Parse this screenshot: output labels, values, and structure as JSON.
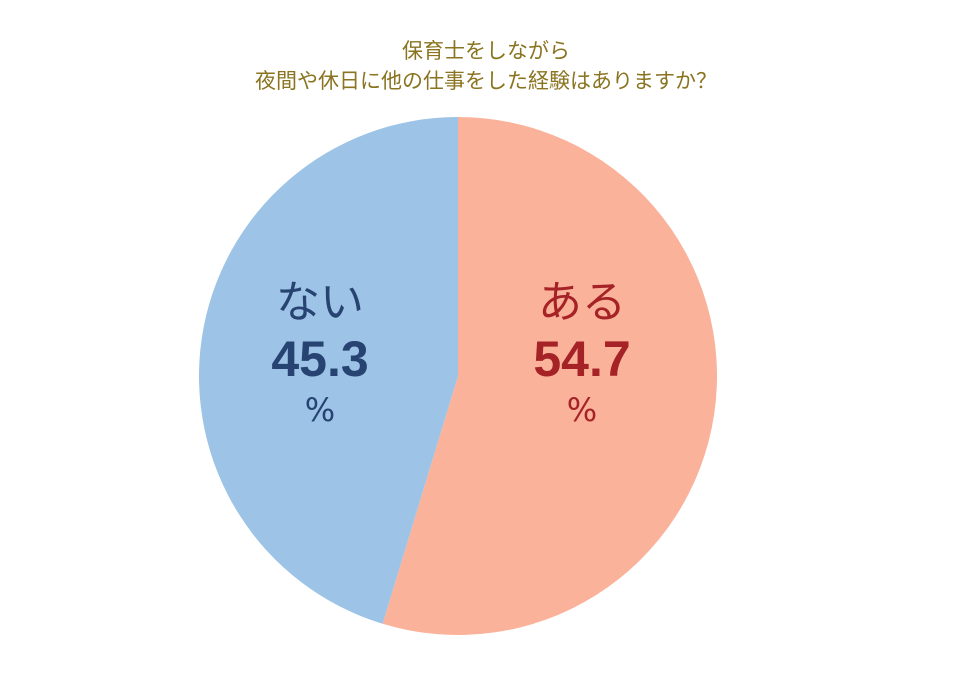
{
  "chart_data": {
    "type": "pie",
    "title": "保育士をしながら夜間や休日に他の仕事をした経験はありますか？",
    "title_lines": [
      "保育士をしながら",
      "夜間や休日に他の仕事をした経験はありますか？"
    ],
    "categories": [
      "ある",
      "ない"
    ],
    "values": [
      54.7,
      45.3
    ],
    "unit": "%",
    "colors": [
      "#fbb29a",
      "#9dc3e6"
    ],
    "label_colors": [
      "#a52226",
      "#274371"
    ],
    "start_angle": "top, clockwise",
    "legend": "none (labels inside slices)"
  },
  "labels": {
    "yes": {
      "name": "ある",
      "value": "54.7",
      "unit": "%"
    },
    "no": {
      "name": "ない",
      "value": "45.3",
      "unit": "%"
    }
  },
  "colors": {
    "title": "#8a7420",
    "yes_slice": "#fbb29a",
    "no_slice": "#9dc3e6"
  }
}
